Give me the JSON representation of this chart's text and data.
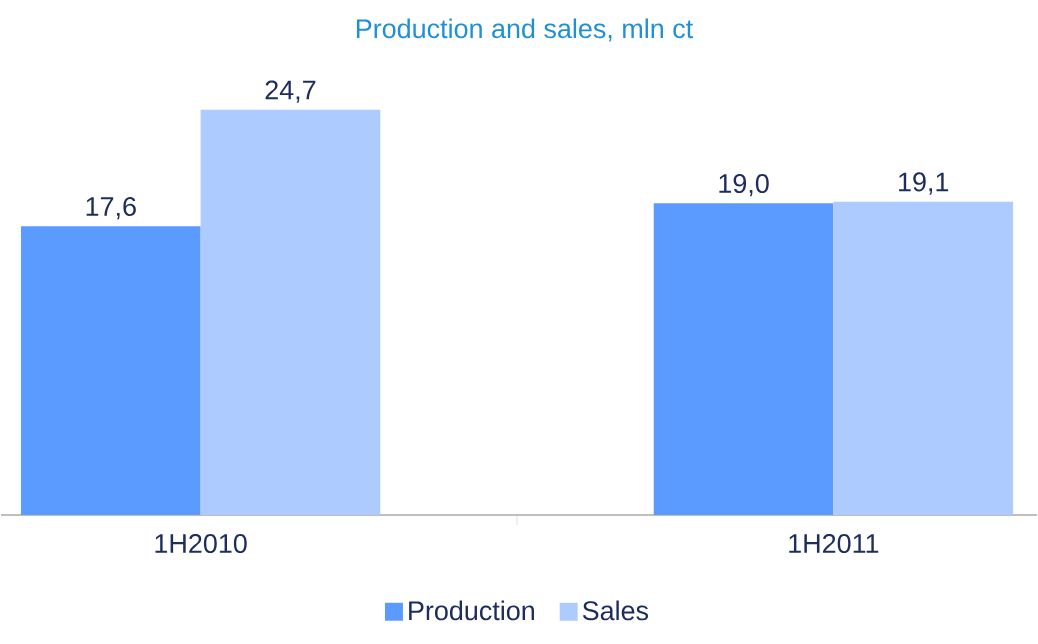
{
  "chart_data": {
    "type": "bar",
    "title": "Production and sales, mln ct",
    "categories": [
      "1H2010",
      "1H2011"
    ],
    "series": [
      {
        "name": "Production",
        "color": "#5b9bff",
        "values": [
          17.6,
          19.0
        ],
        "value_labels": [
          "17,6",
          "19,0"
        ]
      },
      {
        "name": "Sales",
        "color": "#adcbff",
        "values": [
          24.7,
          19.1
        ],
        "value_labels": [
          "24,7",
          "19,1"
        ]
      }
    ],
    "legend": "bottom"
  }
}
